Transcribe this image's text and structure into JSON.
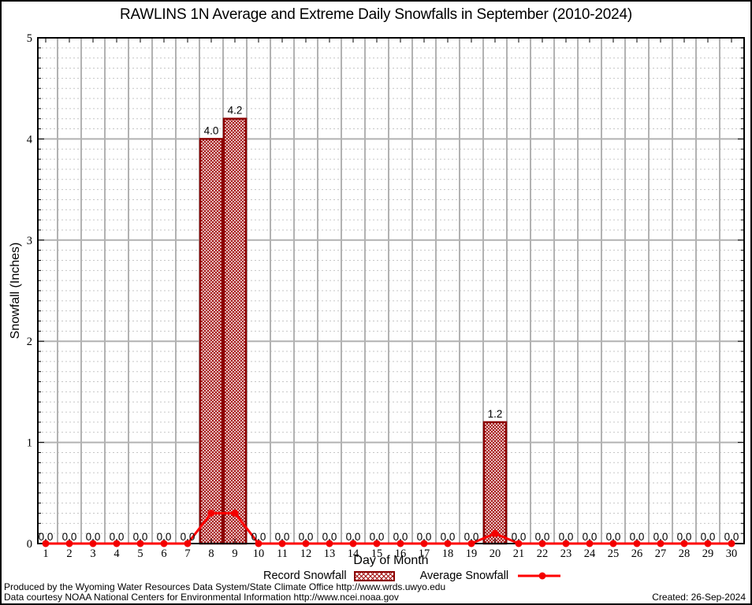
{
  "title": "RAWLINS 1N Average and Extreme Daily Snowfalls in September (2010-2024)",
  "axes": {
    "y_label": "Snowfall (Inches)",
    "x_label": "Day of Month"
  },
  "legend": {
    "record_label": "Record Snowfall",
    "average_label": "Average Snowfall"
  },
  "footer": {
    "line1": "Produced by the Wyoming Water Resources Data System/State Climate Office http://www.wrds.uwyo.edu",
    "line2": "Data courtesy NOAA National Centers for Environmental Information http://www.ncei.noaa.gov",
    "created": "Created: 26-Sep-2024"
  },
  "colors": {
    "bar_border": "#8b0000",
    "bar_hatch": "#a31212",
    "line": "#ff0000",
    "marker": "#f40000",
    "grid_major": "#b2b2b2",
    "grid_minor": "#c6c6c6",
    "frame": "#000000",
    "text": "#000000"
  },
  "chart_data": {
    "type": "bar",
    "title": "RAWLINS 1N Average and Extreme Daily Snowfalls in September (2010-2024)",
    "xlabel": "Day of Month",
    "ylabel": "Snowfall (Inches)",
    "ylim": [
      0,
      5
    ],
    "y_major_ticks": [
      0,
      1,
      2,
      3,
      4,
      5
    ],
    "y_minor_step": 0.1,
    "grid": "major-solid-minor-dashed",
    "legend_position": "bottom-center",
    "categories": [
      1,
      2,
      3,
      4,
      5,
      6,
      7,
      8,
      9,
      10,
      11,
      12,
      13,
      14,
      15,
      16,
      17,
      18,
      19,
      20,
      21,
      22,
      23,
      24,
      25,
      26,
      27,
      28,
      29,
      30
    ],
    "series": [
      {
        "name": "Record Snowfall",
        "type": "bar",
        "style": "crosshatch",
        "values": [
          0.0,
          0.0,
          0.0,
          0.0,
          0.0,
          0.0,
          0.0,
          4.0,
          4.2,
          0.0,
          0.0,
          0.0,
          0.0,
          0.0,
          0.0,
          0.0,
          0.0,
          0.0,
          0.0,
          1.2,
          0.0,
          0.0,
          0.0,
          0.0,
          0.0,
          0.0,
          0.0,
          0.0,
          0.0,
          0.0
        ]
      },
      {
        "name": "Average Snowfall",
        "type": "line",
        "style": "red-line-dot-markers",
        "values": [
          0.0,
          0.0,
          0.0,
          0.0,
          0.0,
          0.0,
          0.0,
          0.3,
          0.3,
          0.0,
          0.0,
          0.0,
          0.0,
          0.0,
          0.0,
          0.0,
          0.0,
          0.0,
          0.0,
          0.1,
          0.0,
          0.0,
          0.0,
          0.0,
          0.0,
          0.0,
          0.0,
          0.0,
          0.0,
          0.0
        ]
      }
    ],
    "data_labels": {
      "source_series": "Record Snowfall",
      "format": "one-decimal",
      "labels": [
        "0.0",
        "0.0",
        "0.0",
        "0.0",
        "0.0",
        "0.0",
        "0.0",
        "4.0",
        "4.2",
        "0.0",
        "0.0",
        "0.0",
        "0.0",
        "0.0",
        "0.0",
        "0.0",
        "0.0",
        "0.0",
        "0.0",
        "1.2",
        "0.0",
        "0.0",
        "0.0",
        "0.0",
        "0.0",
        "0.0",
        "0.0",
        "0.0",
        "0.0",
        "0.0"
      ]
    }
  }
}
